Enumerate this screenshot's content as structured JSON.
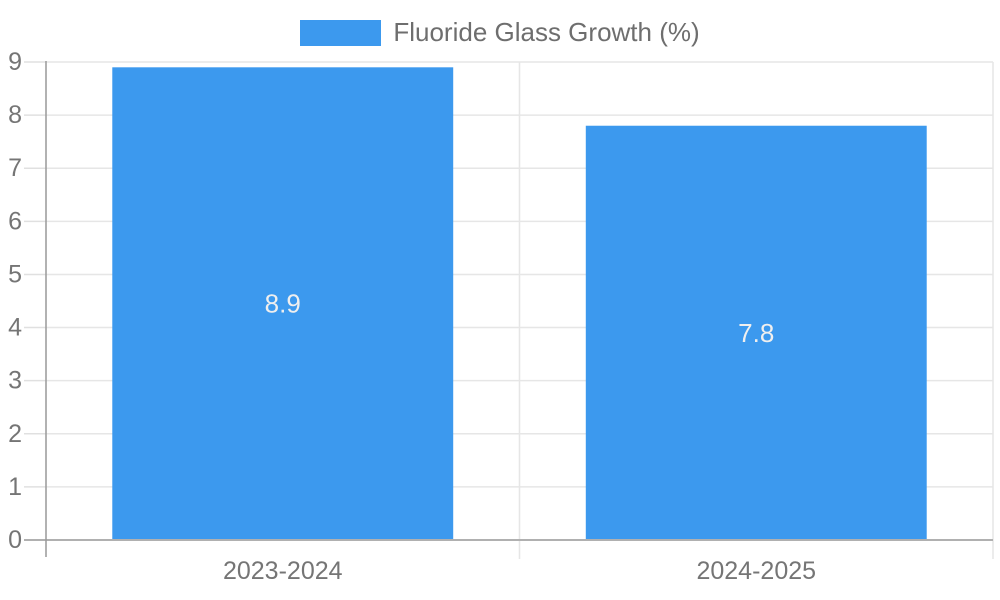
{
  "chart_data": {
    "type": "bar",
    "title": "",
    "series_name": "Fluoride Glass Growth (%)",
    "categories": [
      "2023-2024",
      "2024-2025"
    ],
    "values": [
      8.9,
      7.8
    ],
    "value_labels": [
      "8.9",
      "7.8"
    ],
    "xlabel": "",
    "ylabel": "",
    "ylim": [
      0,
      9
    ],
    "yticks": [
      0,
      1,
      2,
      3,
      4,
      5,
      6,
      7,
      8,
      9
    ],
    "grid": true,
    "legend_position": "top-center",
    "colors": {
      "bar": "#3C99EE",
      "value_label": "#EFEFEF",
      "axis_text": "#757575",
      "gridline": "#E6E6E6",
      "tick": "#E0E0E0",
      "x_axis_line": "#B0B0B0",
      "y_axis_line": "#999999",
      "legend_text": "#6e6e6e",
      "background": "#FFFFFF"
    }
  }
}
